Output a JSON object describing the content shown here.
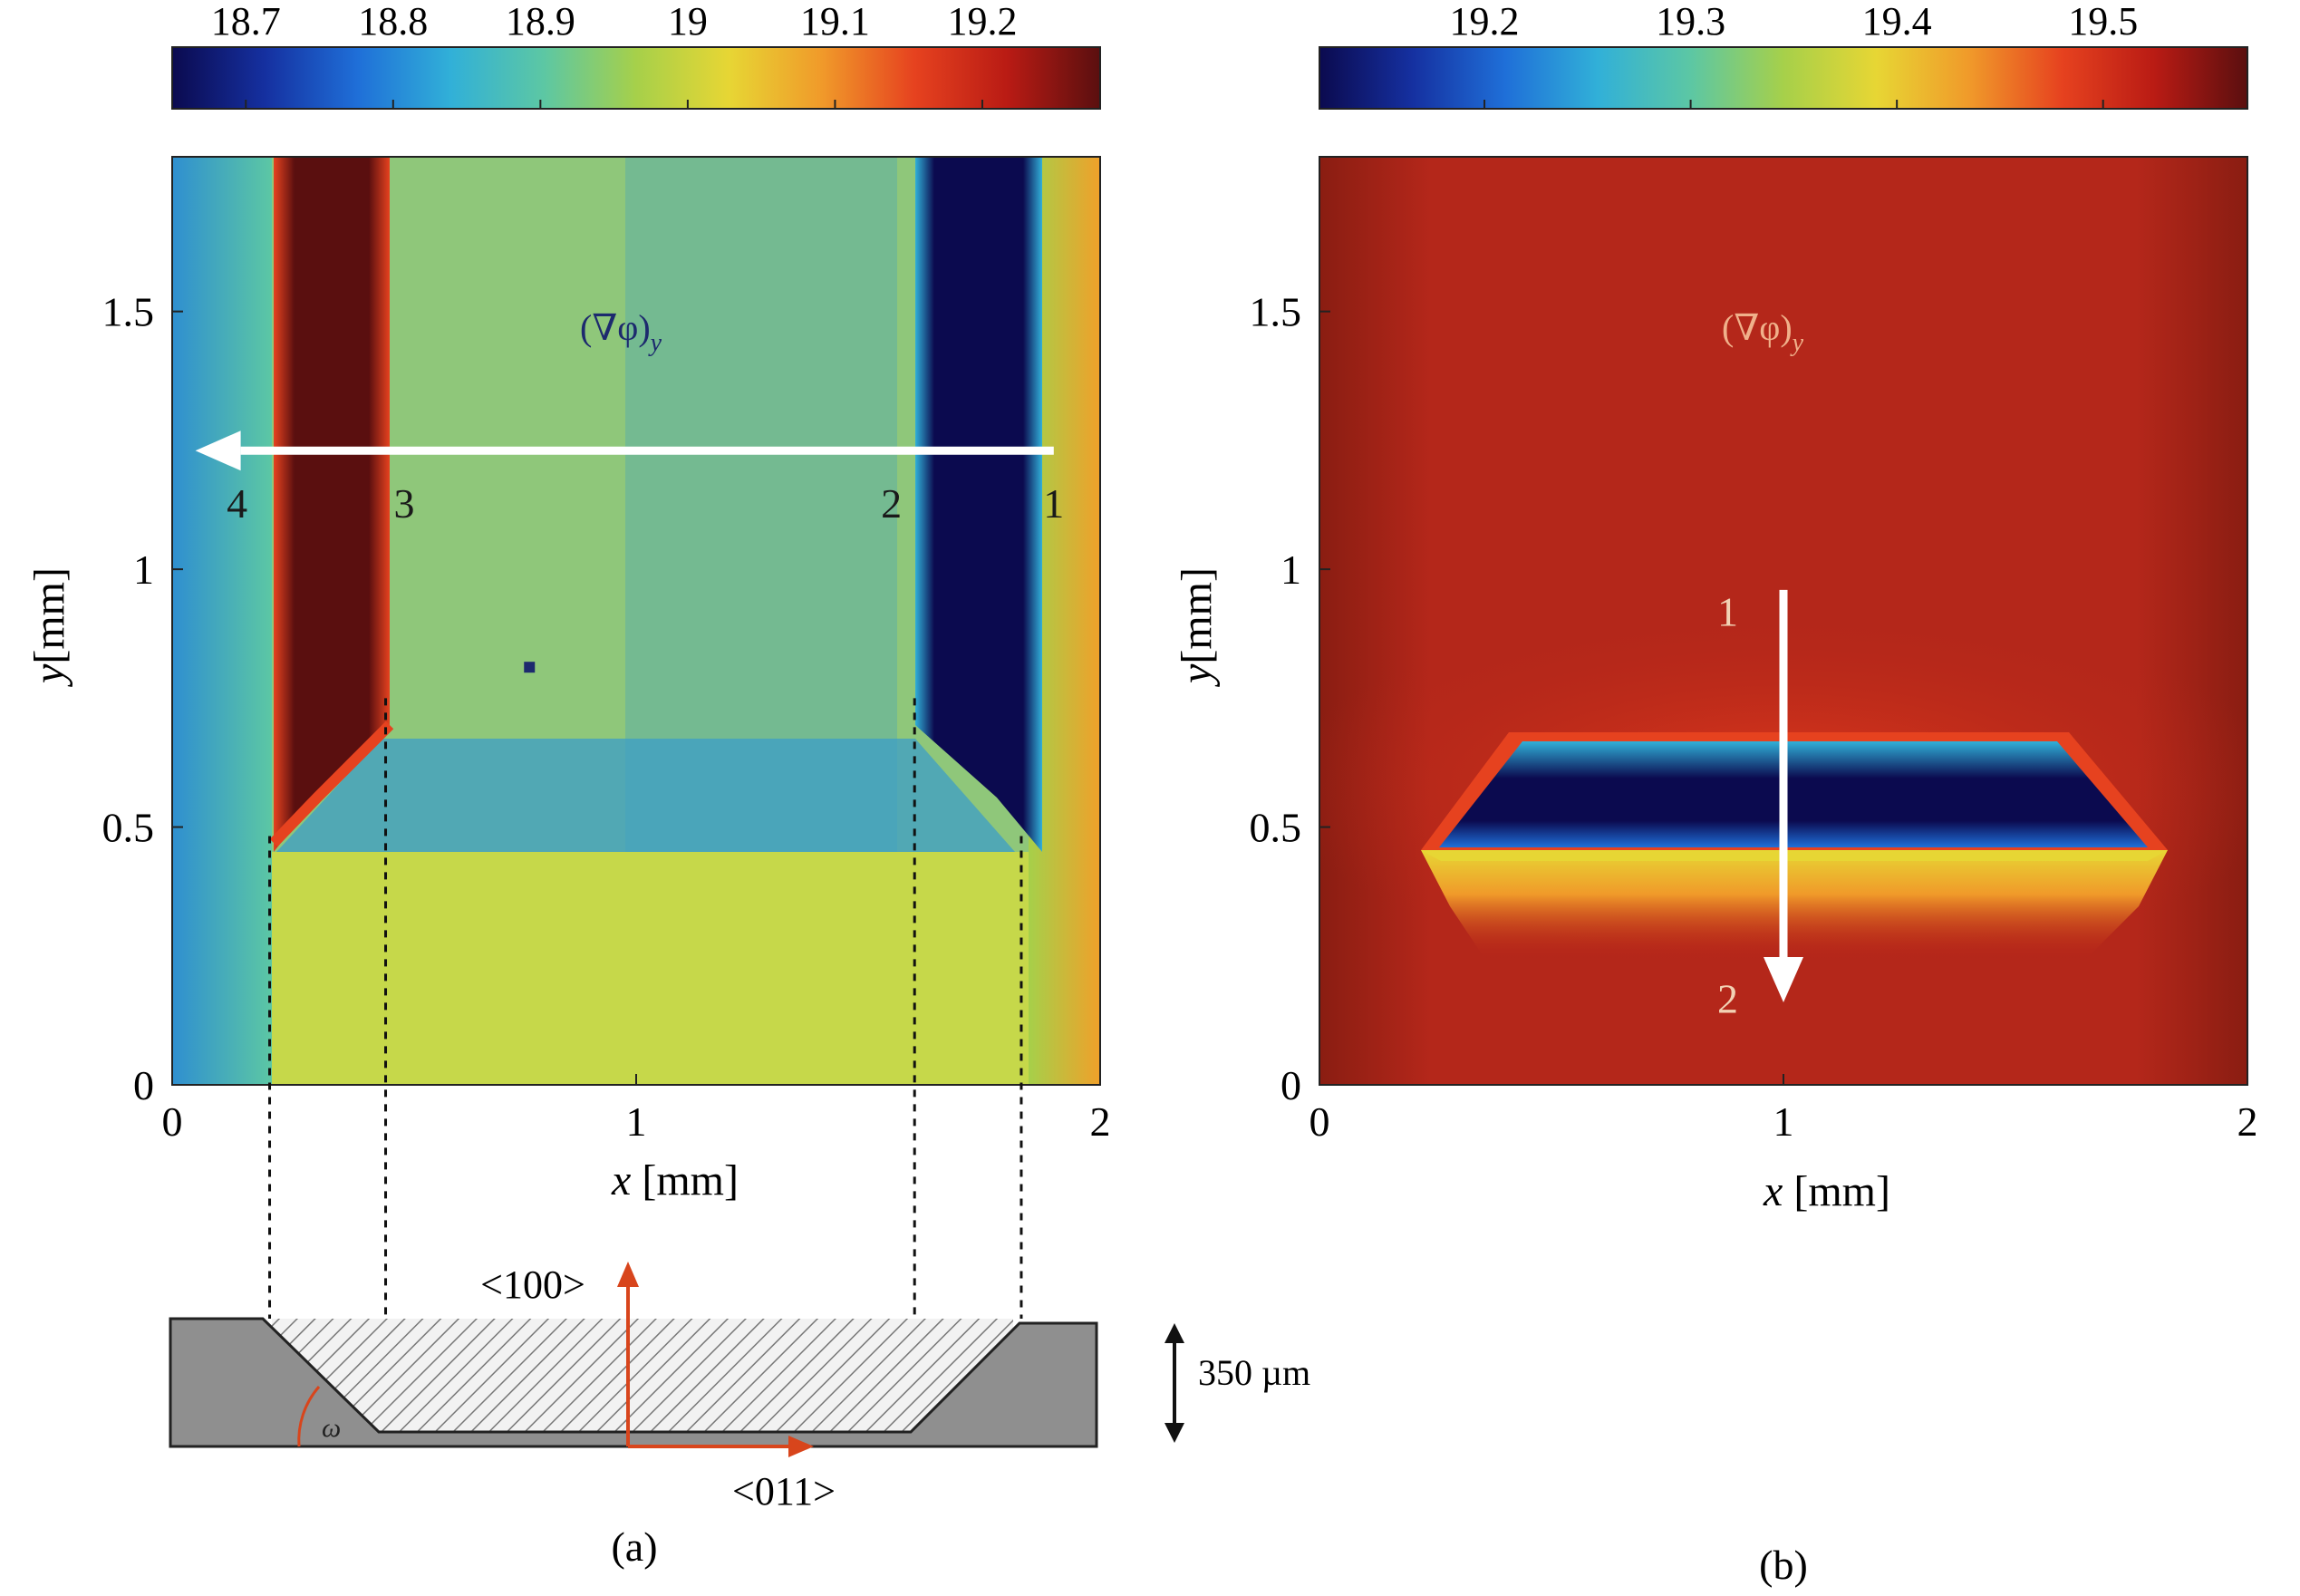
{
  "figure": {
    "colormap": [
      "#0b0a4f",
      "#1530a0",
      "#1f6fd8",
      "#31b0d8",
      "#5cc7a4",
      "#a6d04a",
      "#e7d634",
      "#f09a2a",
      "#e6421f",
      "#b91b14",
      "#5a0f0f"
    ],
    "slope_color": "#d8451c",
    "arrow_color": "#ffffff"
  },
  "chart_data": [
    {
      "type": "heatmap",
      "panel": "(a)",
      "annotation": "(∇φ)",
      "annotation_sub": "y",
      "xlabel_var": "x",
      "xlabel_unit": " [mm]",
      "ylabel_var": "y",
      "ylabel_unit": "[mm]",
      "xlim": [
        0,
        2
      ],
      "ylim": [
        0,
        1.8
      ],
      "xticks": [
        {
          "v": 0,
          "label": "0"
        },
        {
          "v": 1,
          "label": "1"
        },
        {
          "v": 2,
          "label": "2"
        }
      ],
      "yticks": [
        {
          "v": 0,
          "label": "0"
        },
        {
          "v": 0.5,
          "label": "0.5"
        },
        {
          "v": 1,
          "label": "1"
        },
        {
          "v": 1.5,
          "label": "1.5"
        }
      ],
      "colorbar": {
        "range": [
          18.65,
          19.28
        ],
        "ticks": [
          {
            "v": 18.7,
            "label": "18.7"
          },
          {
            "v": 18.8,
            "label": "18.8"
          },
          {
            "v": 18.9,
            "label": "18.9"
          },
          {
            "v": 19.0,
            "label": "19"
          },
          {
            "v": 19.1,
            "label": "19.1"
          },
          {
            "v": 19.2,
            "label": "19.2"
          }
        ]
      },
      "arrow": {
        "from": [
          1.9,
          1.23
        ],
        "to": [
          0.05,
          1.23
        ]
      },
      "point_labels": [
        {
          "text": "4",
          "x": 0.14,
          "y": 1.1
        },
        {
          "text": "3",
          "x": 0.5,
          "y": 1.1
        },
        {
          "text": "2",
          "x": 1.55,
          "y": 1.1
        },
        {
          "text": "1",
          "x": 1.9,
          "y": 1.1
        }
      ],
      "dot": {
        "x": 0.77,
        "y": 0.81
      },
      "regions": [
        {
          "name": "background",
          "value": 19.0
        },
        {
          "name": "left-edge",
          "value": 18.82
        },
        {
          "name": "right-edge",
          "value": 19.17
        },
        {
          "name": "left-groove-wall",
          "value": 19.26
        },
        {
          "name": "right-groove-wall",
          "value": 18.68
        },
        {
          "name": "cavity-bottom",
          "value": 18.93
        },
        {
          "name": "lower-band",
          "value": 19.04
        }
      ],
      "cross_section": {
        "label_100": "<100>",
        "label_011": "<011>",
        "label_angle": "ω",
        "label_depth": "350 µm",
        "dashed_at_x": [
          0.21,
          0.46,
          1.6,
          1.83
        ]
      }
    },
    {
      "type": "heatmap",
      "panel": "(b)",
      "annotation": "(∇φ)",
      "annotation_sub": "y",
      "xlabel_var": "x",
      "xlabel_unit": " [mm]",
      "ylabel_var": "y",
      "ylabel_unit": "[mm]",
      "xlim": [
        0,
        2
      ],
      "ylim": [
        0,
        1.8
      ],
      "xticks": [
        {
          "v": 0,
          "label": "0"
        },
        {
          "v": 1,
          "label": "1"
        },
        {
          "v": 2,
          "label": "2"
        }
      ],
      "yticks": [
        {
          "v": 0,
          "label": "0"
        },
        {
          "v": 0.5,
          "label": "0.5"
        },
        {
          "v": 1,
          "label": "1"
        },
        {
          "v": 1.5,
          "label": "1.5"
        }
      ],
      "colorbar": {
        "range": [
          19.12,
          19.57
        ],
        "ticks": [
          {
            "v": 19.2,
            "label": "19.2"
          },
          {
            "v": 19.3,
            "label": "19.3"
          },
          {
            "v": 19.4,
            "label": "19.4"
          },
          {
            "v": 19.5,
            "label": "19.5"
          }
        ]
      },
      "arrow": {
        "from": [
          1.0,
          0.96
        ],
        "to": [
          1.0,
          0.16
        ]
      },
      "point_labels": [
        {
          "text": "1",
          "x": 0.88,
          "y": 0.89
        },
        {
          "text": "2",
          "x": 0.88,
          "y": 0.14
        }
      ],
      "regions": [
        {
          "name": "background",
          "value": 19.5
        },
        {
          "name": "trapezoid-interior",
          "value": 19.15
        },
        {
          "name": "trapezoid-edge",
          "value": 19.45
        },
        {
          "name": "lower-band",
          "value": 19.42
        }
      ]
    }
  ]
}
